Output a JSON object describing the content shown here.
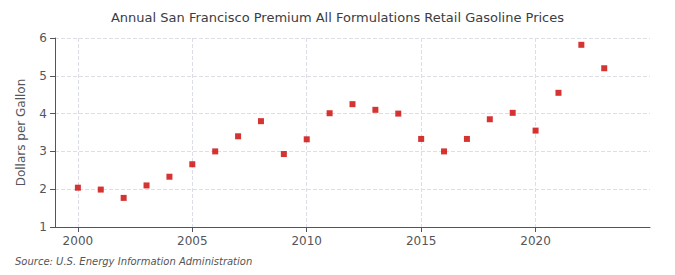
{
  "chart_data": {
    "type": "scatter",
    "title": "Annual San Francisco Premium All Formulations Retail Gasoline Prices",
    "ylabel": "Dollars per Gallon",
    "annotation": "Source: U.S. Energy Information Administration",
    "x": [
      2000,
      2001,
      2002,
      2003,
      2004,
      2005,
      2006,
      2007,
      2008,
      2009,
      2010,
      2011,
      2012,
      2013,
      2014,
      2015,
      2016,
      2017,
      2018,
      2019,
      2020,
      2021,
      2022,
      2023
    ],
    "values": [
      2.04,
      1.99,
      1.77,
      2.1,
      2.33,
      2.66,
      3.0,
      3.4,
      3.8,
      2.93,
      3.32,
      4.01,
      4.25,
      4.1,
      4.0,
      3.33,
      3.0,
      3.33,
      3.85,
      4.02,
      3.55,
      4.55,
      5.82,
      5.2
    ],
    "color": "#cc0000",
    "marker": "square",
    "xlim": [
      1999,
      2025
    ],
    "ylim": [
      1,
      6
    ],
    "xticks": [
      2000,
      2005,
      2010,
      2015,
      2020
    ],
    "yticks": [
      1,
      2,
      3,
      4,
      5,
      6
    ],
    "grid": true
  }
}
